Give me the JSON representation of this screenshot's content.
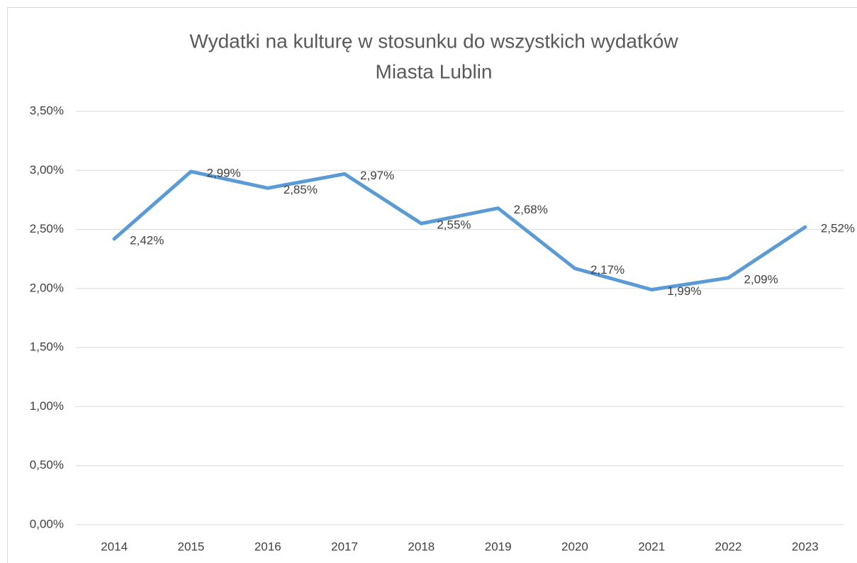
{
  "chart_data": {
    "type": "line",
    "title": [
      "Wydatki na kulturę w stosunku do wszystkich wydatków",
      "Miasta Lublin"
    ],
    "categories": [
      "2014",
      "2015",
      "2016",
      "2017",
      "2018",
      "2019",
      "2020",
      "2021",
      "2022",
      "2023"
    ],
    "series": [
      {
        "color": "#5b9bd5",
        "values": [
          2.42,
          2.99,
          2.85,
          2.97,
          2.55,
          2.68,
          2.17,
          1.99,
          2.09,
          2.52
        ],
        "value_labels": [
          "2,42%",
          "2,99%",
          "2,85%",
          "2,97%",
          "2,55%",
          "2,68%",
          "2,17%",
          "1,99%",
          "2,09%",
          "2,52%"
        ]
      }
    ],
    "ylim": [
      0,
      3.5
    ],
    "yticks": [
      {
        "value": 0,
        "label": "0,00%"
      },
      {
        "value": 0.5,
        "label": "0,50%"
      },
      {
        "value": 1,
        "label": "1,00%"
      },
      {
        "value": 1.5,
        "label": "1,50%"
      },
      {
        "value": 2,
        "label": "2,00%"
      },
      {
        "value": 2.5,
        "label": "2,50%"
      },
      {
        "value": 3,
        "label": "3,00%"
      },
      {
        "value": 3.5,
        "label": "3,50%"
      }
    ],
    "grid": true
  }
}
